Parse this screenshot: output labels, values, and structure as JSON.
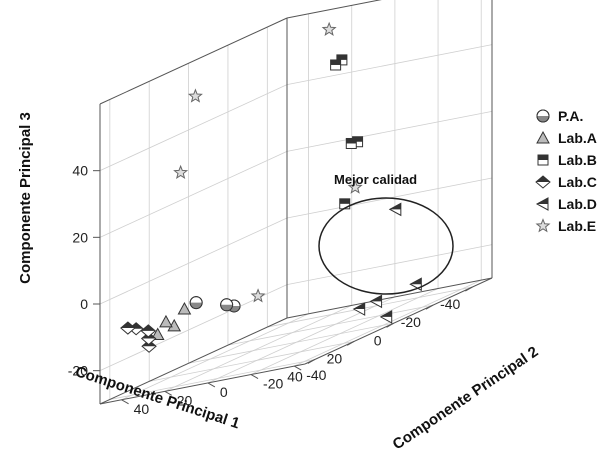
{
  "chart_data": {
    "type": "scatter",
    "projection": "3d",
    "xlabel": "Componente Principal 1",
    "ylabel": "Componente Principal 2",
    "zlabel": "Componente Principal 3",
    "xticks": [
      -40,
      -20,
      0,
      20,
      40
    ],
    "yticks": [
      -40,
      -20,
      0,
      20,
      40
    ],
    "zticks": [
      -20,
      0,
      20,
      40
    ],
    "xlim": [
      -50,
      45
    ],
    "ylim": [
      -45,
      50
    ],
    "zlim": [
      -30,
      60
    ],
    "grid": true,
    "legend_position": "right",
    "annotation": {
      "text": "Mejor calidad"
    },
    "series": [
      {
        "name": "P.A.",
        "marker": "circle-half",
        "points": [
          [
            35,
            -3,
            -10
          ],
          [
            30,
            5,
            -10
          ],
          [
            40,
            10,
            -6
          ]
        ]
      },
      {
        "name": "Lab.A",
        "marker": "triangle-up",
        "points": [
          [
            35,
            20,
            -8
          ],
          [
            38,
            22,
            -12
          ],
          [
            40,
            24,
            -10
          ],
          [
            42,
            26,
            -13
          ]
        ]
      },
      {
        "name": "Lab.B",
        "marker": "square-half",
        "points": [
          [
            -45,
            20,
            45
          ],
          [
            -44,
            22,
            44
          ],
          [
            -42,
            10,
            20
          ],
          [
            -41,
            12,
            20
          ],
          [
            -30,
            5,
            4
          ]
        ]
      },
      {
        "name": "Lab.C",
        "marker": "diamond-half",
        "points": [
          [
            42,
            30,
            -16
          ],
          [
            40,
            32,
            -14
          ],
          [
            38,
            34,
            -12
          ],
          [
            42,
            36,
            -10
          ],
          [
            44,
            38,
            -9
          ]
        ]
      },
      {
        "name": "Lab.D",
        "marker": "triangle-left",
        "points": [
          [
            -45,
            -5,
            -3
          ],
          [
            -28,
            -30,
            -24
          ],
          [
            -10,
            -28,
            -24
          ],
          [
            -8,
            -22,
            -25
          ],
          [
            -2,
            -40,
            -28
          ]
        ]
      },
      {
        "name": "Lab.E",
        "marker": "star",
        "points": [
          [
            -44,
            25,
            55
          ],
          [
            -32,
            2,
            8
          ],
          [
            2,
            45,
            50
          ],
          [
            15,
            40,
            30
          ],
          [
            25,
            -5,
            -10
          ]
        ]
      }
    ]
  }
}
